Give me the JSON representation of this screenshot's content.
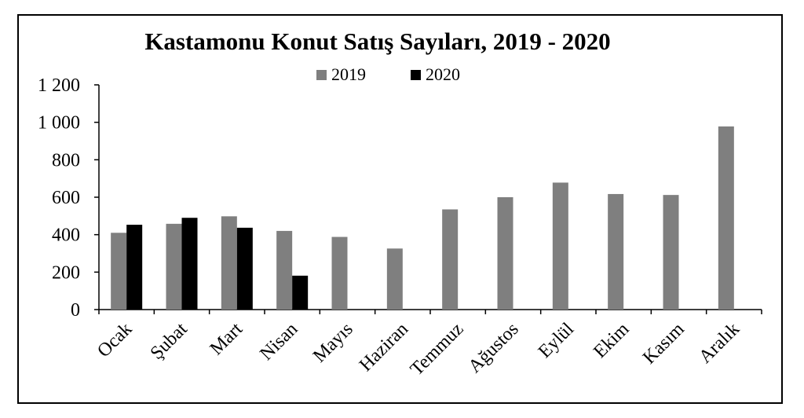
{
  "chart_data": {
    "type": "bar",
    "title": "Kastamonu Konut Satış Sayıları, 2019 - 2020",
    "xlabel": "",
    "ylabel": "",
    "ylim": [
      0,
      1200
    ],
    "yticks": [
      "0",
      "200",
      "400",
      "600",
      "800",
      "1 000",
      "1 200"
    ],
    "ytick_values": [
      0,
      200,
      400,
      600,
      800,
      1000,
      1200
    ],
    "grid": false,
    "legend": "top-center",
    "categories": [
      "Ocak",
      "Şubat",
      "Mart",
      "Nisan",
      "Mayıs",
      "Haziran",
      "Temmuz",
      "Ağustos",
      "Eylül",
      "Ekim",
      "Kasım",
      "Aralık"
    ],
    "series": [
      {
        "name": "2019",
        "color": "#7f7f7f",
        "values": [
          410,
          458,
          498,
          420,
          388,
          326,
          535,
          600,
          678,
          617,
          612,
          978
        ]
      },
      {
        "name": "2020",
        "color": "#000000",
        "values": [
          453,
          490,
          437,
          181,
          null,
          null,
          null,
          null,
          null,
          null,
          null,
          null
        ]
      }
    ]
  }
}
